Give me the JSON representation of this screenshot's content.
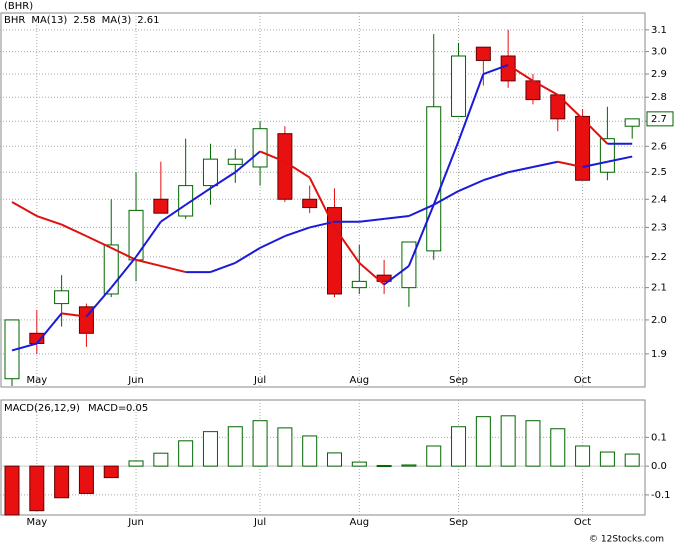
{
  "chart_data": [
    {
      "type": "candlestick",
      "title": "(BHR)",
      "symbol": "BHR",
      "categories": [
        null,
        "May",
        null,
        null,
        null,
        "Jun",
        null,
        null,
        null,
        null,
        "Jul",
        null,
        null,
        null,
        "Aug",
        null,
        null,
        null,
        "Sep",
        null,
        null,
        null,
        null,
        "Oct",
        null,
        null
      ],
      "open": [
        1.83,
        1.96,
        2.05,
        2.04,
        2.08,
        2.19,
        2.4,
        2.34,
        2.45,
        2.53,
        2.52,
        2.65,
        2.4,
        2.37,
        2.1,
        2.14,
        2.1,
        2.22,
        2.72,
        3.02,
        2.98,
        2.87,
        2.81,
        2.72,
        2.5,
        2.68
      ],
      "high": [
        2.0,
        2.03,
        2.14,
        2.05,
        2.4,
        2.5,
        2.54,
        2.63,
        2.61,
        2.59,
        2.7,
        2.68,
        2.45,
        2.44,
        2.24,
        2.19,
        2.25,
        3.08,
        3.04,
        3.02,
        3.1,
        2.9,
        2.81,
        2.75,
        2.76,
        2.71
      ],
      "low": [
        1.81,
        1.9,
        1.98,
        1.92,
        2.07,
        2.12,
        2.35,
        2.33,
        2.38,
        2.46,
        2.45,
        2.39,
        2.35,
        2.07,
        2.08,
        2.08,
        2.04,
        2.19,
        2.72,
        2.85,
        2.84,
        2.77,
        2.66,
        2.47,
        2.47,
        2.63
      ],
      "close": [
        2.0,
        1.93,
        2.09,
        1.96,
        2.24,
        2.36,
        2.35,
        2.45,
        2.55,
        2.55,
        2.67,
        2.4,
        2.37,
        2.08,
        2.12,
        2.12,
        2.25,
        2.76,
        2.98,
        2.96,
        2.87,
        2.79,
        2.71,
        2.47,
        2.63,
        2.71
      ],
      "up_color": "#006400",
      "down_color": "#e81010",
      "last_value_label": "2.7",
      "series": [
        {
          "name": "MA(13)",
          "legend_value": 2.58,
          "color": "#1a1ad8",
          "down_color": "#e01010",
          "values": [
            2.39,
            2.34,
            2.31,
            2.27,
            2.23,
            2.19,
            2.17,
            2.15,
            2.15,
            2.18,
            2.23,
            2.27,
            2.3,
            2.32,
            2.32,
            2.33,
            2.34,
            2.38,
            2.43,
            2.47,
            2.5,
            2.52,
            2.54,
            2.52,
            2.54,
            2.56
          ]
        },
        {
          "name": "MA(3)",
          "legend_value": 2.61,
          "color": "#1a1ad8",
          "down_color": "#e01010",
          "values": [
            1.91,
            1.93,
            2.02,
            2.01,
            2.1,
            2.2,
            2.32,
            2.38,
            2.44,
            2.5,
            2.58,
            2.54,
            2.48,
            2.3,
            2.18,
            2.11,
            2.17,
            2.38,
            2.62,
            2.9,
            2.94,
            2.87,
            2.81,
            2.71,
            2.61,
            2.61
          ]
        }
      ],
      "log_y": true,
      "grid": true,
      "ylim": [
        1.81,
        3.18
      ],
      "yticks": [
        1.9,
        {
          "value": 2,
          "label": "2.0"
        },
        2.1,
        2.2,
        2.3,
        2.4,
        2.5,
        2.6,
        2.7,
        2.8,
        2.9,
        {
          "value": 3,
          "label": "3.0"
        },
        3.1
      ]
    },
    {
      "type": "bar",
      "title": "MACD(26,12,9)",
      "legend_name": "MACD",
      "legend_value": 0.05,
      "categories": [
        null,
        "May",
        null,
        null,
        null,
        "Jun",
        null,
        null,
        null,
        null,
        "Jul",
        null,
        null,
        null,
        "Aug",
        null,
        null,
        null,
        "Sep",
        null,
        null,
        null,
        null,
        "Oct",
        null,
        null
      ],
      "values": [
        -0.17,
        -0.155,
        -0.11,
        -0.095,
        -0.04,
        0.018,
        0.045,
        0.088,
        0.12,
        0.137,
        0.158,
        0.133,
        0.105,
        0.046,
        0.014,
        0.002,
        0.004,
        0.07,
        0.137,
        0.172,
        0.175,
        0.158,
        0.13,
        0.07,
        0.049,
        0.042
      ],
      "up_color": "#006400",
      "down_color": "#e81010",
      "grid": true,
      "ylim": [
        -0.17,
        0.23
      ],
      "yticks": [
        -0.1,
        {
          "value": 0,
          "label": "0.0"
        },
        0.1
      ]
    }
  ],
  "footer": "© 12Stocks.com"
}
